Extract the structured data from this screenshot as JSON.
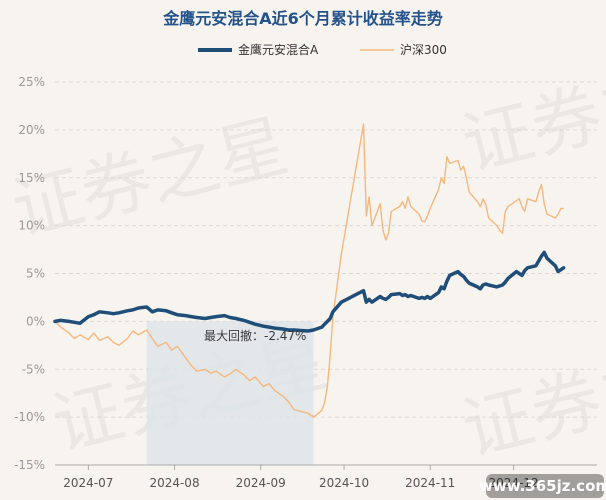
{
  "watermark": "证券之星",
  "site_mark": "www.365jz.com",
  "chart_data": {
    "type": "line",
    "title": "金鹰元安混合A近6个月累计收益率走势",
    "legend_position": "top-center",
    "grid": true,
    "ylim": [
      -15,
      25
    ],
    "yticks": [
      -15,
      -10,
      -5,
      0,
      5,
      10,
      15,
      20,
      25
    ],
    "ytick_labels": [
      "-15%",
      "-10%",
      "-5%",
      "0%",
      "5%",
      "10%",
      "15%",
      "20%",
      "25%"
    ],
    "xlim": [
      "2024-06-19",
      "2024-12-31"
    ],
    "xticks": [
      "2024-07-01",
      "2024-08-01",
      "2024-09-01",
      "2024-10-01",
      "2024-11-01",
      "2024-12-01"
    ],
    "xtick_labels": [
      "2024-07",
      "2024-08",
      "2024-09",
      "2024-10",
      "2024-11",
      "2024-12"
    ],
    "max_drawdown": {
      "label": "最大回撤：-2.47%",
      "start": "2024-07-22",
      "end": "2024-09-20"
    },
    "series": [
      {
        "name": "金鹰元安混合A",
        "color": "#1f4e79",
        "points": [
          [
            "2024-06-19",
            0.0
          ],
          [
            "2024-06-21",
            0.1
          ],
          [
            "2024-06-24",
            0.0
          ],
          [
            "2024-06-26",
            -0.1
          ],
          [
            "2024-06-28",
            -0.2
          ],
          [
            "2024-07-01",
            0.5
          ],
          [
            "2024-07-03",
            0.7
          ],
          [
            "2024-07-05",
            1.0
          ],
          [
            "2024-07-08",
            0.9
          ],
          [
            "2024-07-10",
            0.8
          ],
          [
            "2024-07-12",
            0.9
          ],
          [
            "2024-07-15",
            1.1
          ],
          [
            "2024-07-17",
            1.2
          ],
          [
            "2024-07-19",
            1.4
          ],
          [
            "2024-07-22",
            1.5
          ],
          [
            "2024-07-24",
            1.0
          ],
          [
            "2024-07-26",
            1.2
          ],
          [
            "2024-07-29",
            1.1
          ],
          [
            "2024-07-31",
            0.9
          ],
          [
            "2024-08-02",
            0.7
          ],
          [
            "2024-08-05",
            0.6
          ],
          [
            "2024-08-07",
            0.5
          ],
          [
            "2024-08-09",
            0.4
          ],
          [
            "2024-08-12",
            0.3
          ],
          [
            "2024-08-14",
            0.4
          ],
          [
            "2024-08-16",
            0.5
          ],
          [
            "2024-08-19",
            0.6
          ],
          [
            "2024-08-21",
            0.4
          ],
          [
            "2024-08-23",
            0.3
          ],
          [
            "2024-08-26",
            0.1
          ],
          [
            "2024-08-28",
            -0.1
          ],
          [
            "2024-08-30",
            -0.3
          ],
          [
            "2024-09-02",
            -0.5
          ],
          [
            "2024-09-04",
            -0.6
          ],
          [
            "2024-09-06",
            -0.7
          ],
          [
            "2024-09-09",
            -0.8
          ],
          [
            "2024-09-11",
            -0.9
          ],
          [
            "2024-09-13",
            -0.9
          ],
          [
            "2024-09-18",
            -1.0
          ],
          [
            "2024-09-20",
            -0.9
          ],
          [
            "2024-09-23",
            -0.6
          ],
          [
            "2024-09-24",
            -0.3
          ],
          [
            "2024-09-25",
            0.0
          ],
          [
            "2024-09-26",
            0.3
          ],
          [
            "2024-09-27",
            1.0
          ],
          [
            "2024-09-30",
            2.0
          ],
          [
            "2024-10-08",
            3.2
          ],
          [
            "2024-10-09",
            2.0
          ],
          [
            "2024-10-10",
            2.3
          ],
          [
            "2024-10-11",
            2.0
          ],
          [
            "2024-10-14",
            2.6
          ],
          [
            "2024-10-15",
            2.4
          ],
          [
            "2024-10-16",
            2.3
          ],
          [
            "2024-10-17",
            2.5
          ],
          [
            "2024-10-18",
            2.8
          ],
          [
            "2024-10-21",
            2.9
          ],
          [
            "2024-10-22",
            2.7
          ],
          [
            "2024-10-23",
            2.8
          ],
          [
            "2024-10-24",
            2.6
          ],
          [
            "2024-10-25",
            2.7
          ],
          [
            "2024-10-28",
            2.4
          ],
          [
            "2024-10-29",
            2.5
          ],
          [
            "2024-10-30",
            2.4
          ],
          [
            "2024-10-31",
            2.6
          ],
          [
            "2024-11-01",
            2.4
          ],
          [
            "2024-11-04",
            3.0
          ],
          [
            "2024-11-05",
            3.6
          ],
          [
            "2024-11-06",
            3.4
          ],
          [
            "2024-11-07",
            4.2
          ],
          [
            "2024-11-08",
            4.8
          ],
          [
            "2024-11-11",
            5.2
          ],
          [
            "2024-11-12",
            4.9
          ],
          [
            "2024-11-13",
            4.7
          ],
          [
            "2024-11-14",
            4.3
          ],
          [
            "2024-11-15",
            4.0
          ],
          [
            "2024-11-18",
            3.6
          ],
          [
            "2024-11-19",
            3.4
          ],
          [
            "2024-11-20",
            3.8
          ],
          [
            "2024-11-21",
            3.9
          ],
          [
            "2024-11-22",
            3.8
          ],
          [
            "2024-11-25",
            3.6
          ],
          [
            "2024-11-26",
            3.7
          ],
          [
            "2024-11-27",
            3.8
          ],
          [
            "2024-11-28",
            4.1
          ],
          [
            "2024-11-29",
            4.5
          ],
          [
            "2024-12-02",
            5.2
          ],
          [
            "2024-12-03",
            5.0
          ],
          [
            "2024-12-04",
            4.8
          ],
          [
            "2024-12-05",
            5.3
          ],
          [
            "2024-12-06",
            5.6
          ],
          [
            "2024-12-09",
            5.8
          ],
          [
            "2024-12-10",
            6.3
          ],
          [
            "2024-12-11",
            6.8
          ],
          [
            "2024-12-12",
            7.2
          ],
          [
            "2024-12-13",
            6.6
          ],
          [
            "2024-12-16",
            5.8
          ],
          [
            "2024-12-17",
            5.2
          ],
          [
            "2024-12-18",
            5.4
          ],
          [
            "2024-12-19",
            5.6
          ]
        ]
      },
      {
        "name": "沪深300",
        "color": "#f5b77d",
        "points": [
          [
            "2024-06-19",
            0.0
          ],
          [
            "2024-06-21",
            -0.6
          ],
          [
            "2024-06-24",
            -1.2
          ],
          [
            "2024-06-26",
            -1.8
          ],
          [
            "2024-06-28",
            -1.4
          ],
          [
            "2024-07-01",
            -1.9
          ],
          [
            "2024-07-03",
            -1.2
          ],
          [
            "2024-07-05",
            -2.0
          ],
          [
            "2024-07-08",
            -1.6
          ],
          [
            "2024-07-10",
            -2.2
          ],
          [
            "2024-07-12",
            -2.5
          ],
          [
            "2024-07-15",
            -1.8
          ],
          [
            "2024-07-17",
            -1.0
          ],
          [
            "2024-07-19",
            -1.4
          ],
          [
            "2024-07-22",
            -0.9
          ],
          [
            "2024-07-24",
            -1.8
          ],
          [
            "2024-07-26",
            -2.6
          ],
          [
            "2024-07-29",
            -2.2
          ],
          [
            "2024-07-31",
            -3.0
          ],
          [
            "2024-08-02",
            -2.6
          ],
          [
            "2024-08-05",
            -3.8
          ],
          [
            "2024-08-07",
            -4.6
          ],
          [
            "2024-08-09",
            -5.2
          ],
          [
            "2024-08-12",
            -5.0
          ],
          [
            "2024-08-14",
            -5.4
          ],
          [
            "2024-08-16",
            -5.2
          ],
          [
            "2024-08-19",
            -5.8
          ],
          [
            "2024-08-21",
            -5.5
          ],
          [
            "2024-08-23",
            -5.0
          ],
          [
            "2024-08-26",
            -5.6
          ],
          [
            "2024-08-28",
            -6.2
          ],
          [
            "2024-08-30",
            -5.8
          ],
          [
            "2024-09-02",
            -6.8
          ],
          [
            "2024-09-04",
            -6.5
          ],
          [
            "2024-09-06",
            -7.2
          ],
          [
            "2024-09-09",
            -7.8
          ],
          [
            "2024-09-11",
            -8.4
          ],
          [
            "2024-09-13",
            -9.2
          ],
          [
            "2024-09-18",
            -9.6
          ],
          [
            "2024-09-20",
            -10.0
          ],
          [
            "2024-09-23",
            -9.3
          ],
          [
            "2024-09-24",
            -8.5
          ],
          [
            "2024-09-25",
            -6.8
          ],
          [
            "2024-09-26",
            -3.5
          ],
          [
            "2024-09-27",
            0.5
          ],
          [
            "2024-09-30",
            7.0
          ],
          [
            "2024-10-08",
            20.6
          ],
          [
            "2024-10-09",
            11.0
          ],
          [
            "2024-10-10",
            13.0
          ],
          [
            "2024-10-11",
            10.0
          ],
          [
            "2024-10-14",
            12.3
          ],
          [
            "2024-10-15",
            9.5
          ],
          [
            "2024-10-16",
            8.5
          ],
          [
            "2024-10-17",
            9.2
          ],
          [
            "2024-10-18",
            11.5
          ],
          [
            "2024-10-21",
            12.0
          ],
          [
            "2024-10-22",
            12.5
          ],
          [
            "2024-10-23",
            11.8
          ],
          [
            "2024-10-24",
            13.0
          ],
          [
            "2024-10-25",
            12.0
          ],
          [
            "2024-10-28",
            11.2
          ],
          [
            "2024-10-29",
            10.5
          ],
          [
            "2024-10-30",
            10.4
          ],
          [
            "2024-10-31",
            11.0
          ],
          [
            "2024-11-01",
            11.8
          ],
          [
            "2024-11-04",
            13.8
          ],
          [
            "2024-11-05",
            15.0
          ],
          [
            "2024-11-06",
            14.4
          ],
          [
            "2024-11-07",
            17.2
          ],
          [
            "2024-11-08",
            16.5
          ],
          [
            "2024-11-11",
            16.8
          ],
          [
            "2024-11-12",
            15.8
          ],
          [
            "2024-11-13",
            16.2
          ],
          [
            "2024-11-14",
            15.0
          ],
          [
            "2024-11-15",
            13.5
          ],
          [
            "2024-11-18",
            12.5
          ],
          [
            "2024-11-19",
            12.0
          ],
          [
            "2024-11-20",
            12.8
          ],
          [
            "2024-11-21",
            12.2
          ],
          [
            "2024-11-22",
            10.8
          ],
          [
            "2024-11-25",
            10.0
          ],
          [
            "2024-11-26",
            9.5
          ],
          [
            "2024-11-27",
            9.2
          ],
          [
            "2024-11-28",
            11.5
          ],
          [
            "2024-11-29",
            12.0
          ],
          [
            "2024-12-02",
            12.6
          ],
          [
            "2024-12-03",
            12.8
          ],
          [
            "2024-12-04",
            12.0
          ],
          [
            "2024-12-05",
            11.5
          ],
          [
            "2024-12-06",
            12.8
          ],
          [
            "2024-12-09",
            12.5
          ],
          [
            "2024-12-10",
            13.5
          ],
          [
            "2024-12-11",
            14.3
          ],
          [
            "2024-12-12",
            12.3
          ],
          [
            "2024-12-13",
            11.2
          ],
          [
            "2024-12-16",
            10.8
          ],
          [
            "2024-12-17",
            11.2
          ],
          [
            "2024-12-18",
            11.8
          ],
          [
            "2024-12-19",
            11.8
          ]
        ]
      }
    ]
  }
}
